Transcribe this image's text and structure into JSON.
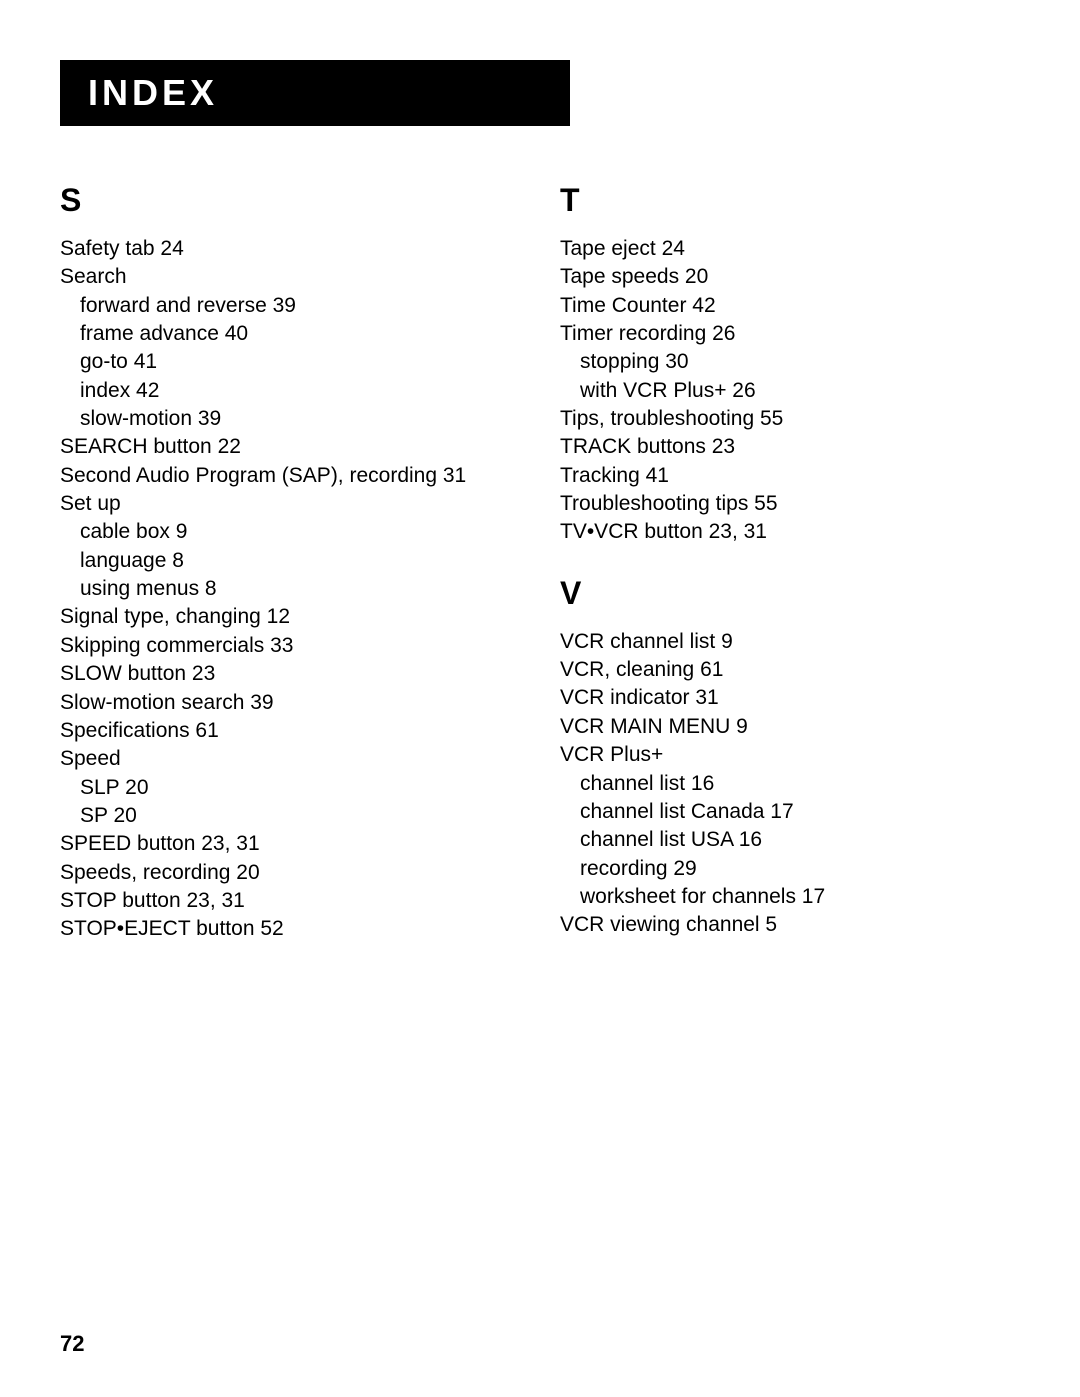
{
  "header": "INDEX",
  "pageNumber": "72",
  "columns": [
    {
      "sections": [
        {
          "letter": "S",
          "entries": [
            {
              "text": "Safety tab  24",
              "indent": 0
            },
            {
              "text": "Search",
              "indent": 0
            },
            {
              "text": "forward and reverse  39",
              "indent": 1
            },
            {
              "text": "frame advance  40",
              "indent": 1
            },
            {
              "text": "go-to  41",
              "indent": 1
            },
            {
              "text": "index  42",
              "indent": 1
            },
            {
              "text": "slow-motion  39",
              "indent": 1
            },
            {
              "text": "SEARCH button  22",
              "indent": 0
            },
            {
              "text": "Second Audio Program (SAP), recording  31",
              "indent": 0
            },
            {
              "text": "Set up",
              "indent": 0
            },
            {
              "text": "cable box  9",
              "indent": 1
            },
            {
              "text": "language  8",
              "indent": 1
            },
            {
              "text": "using menus  8",
              "indent": 1
            },
            {
              "text": "Signal type, changing  12",
              "indent": 0
            },
            {
              "text": "Skipping commercials  33",
              "indent": 0
            },
            {
              "text": "SLOW button  23",
              "indent": 0
            },
            {
              "text": "Slow-motion search  39",
              "indent": 0
            },
            {
              "text": "Specifications  61",
              "indent": 0
            },
            {
              "text": "Speed",
              "indent": 0
            },
            {
              "text": "SLP  20",
              "indent": 1
            },
            {
              "text": "SP  20",
              "indent": 1
            },
            {
              "text": "SPEED button  23,  31",
              "indent": 0
            },
            {
              "text": "Speeds, recording  20",
              "indent": 0
            },
            {
              "text": "STOP button  23,  31",
              "indent": 0
            },
            {
              "text": "STOP•EJECT button  52",
              "indent": 0
            }
          ]
        }
      ]
    },
    {
      "sections": [
        {
          "letter": "T",
          "entries": [
            {
              "text": "Tape eject  24",
              "indent": 0
            },
            {
              "text": "Tape speeds  20",
              "indent": 0
            },
            {
              "text": "Time Counter  42",
              "indent": 0
            },
            {
              "text": "Timer recording  26",
              "indent": 0
            },
            {
              "text": "stopping  30",
              "indent": 1
            },
            {
              "text": "with VCR Plus+  26",
              "indent": 1
            },
            {
              "text": "Tips, troubleshooting  55",
              "indent": 0
            },
            {
              "text": "TRACK buttons  23",
              "indent": 0
            },
            {
              "text": "Tracking  41",
              "indent": 0
            },
            {
              "text": "Troubleshooting tips  55",
              "indent": 0
            },
            {
              "text": "TV•VCR button  23,  31",
              "indent": 0
            }
          ]
        },
        {
          "letter": "V",
          "entries": [
            {
              "text": "VCR channel list  9",
              "indent": 0
            },
            {
              "text": "VCR, cleaning  61",
              "indent": 0
            },
            {
              "text": "VCR indicator  31",
              "indent": 0
            },
            {
              "text": "VCR MAIN MENU  9",
              "indent": 0
            },
            {
              "text": "VCR Plus+",
              "indent": 0
            },
            {
              "text": "channel list  16",
              "indent": 1
            },
            {
              "text": "channel list Canada  17",
              "indent": 1
            },
            {
              "text": "channel list USA  16",
              "indent": 1
            },
            {
              "text": "recording  29",
              "indent": 1
            },
            {
              "text": "worksheet for channels  17",
              "indent": 1
            },
            {
              "text": "VCR viewing channel  5",
              "indent": 0
            }
          ]
        }
      ]
    }
  ]
}
